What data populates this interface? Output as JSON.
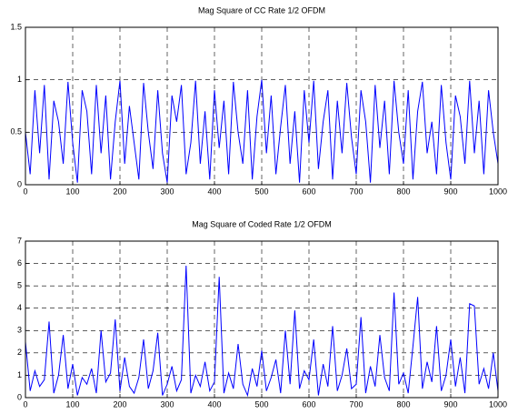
{
  "chart_data": [
    {
      "type": "line",
      "title": "Mag Square of CC Rate 1/2 OFDM",
      "x": [
        0,
        10,
        20,
        30,
        40,
        50,
        60,
        70,
        80,
        90,
        100,
        110,
        120,
        130,
        140,
        150,
        160,
        170,
        180,
        190,
        200,
        210,
        220,
        230,
        240,
        250,
        260,
        270,
        280,
        290,
        300,
        310,
        320,
        330,
        340,
        350,
        360,
        370,
        380,
        390,
        400,
        410,
        420,
        430,
        440,
        450,
        460,
        470,
        480,
        490,
        500,
        510,
        520,
        530,
        540,
        550,
        560,
        570,
        580,
        590,
        600,
        610,
        620,
        630,
        640,
        650,
        660,
        670,
        680,
        690,
        700,
        710,
        720,
        730,
        740,
        750,
        760,
        770,
        780,
        790,
        800,
        810,
        820,
        830,
        840,
        850,
        860,
        870,
        880,
        890,
        900,
        910,
        920,
        930,
        940,
        950,
        960,
        970,
        980,
        990,
        1000
      ],
      "series": [
        {
          "color": "#0000ff",
          "values": [
            0.5,
            0.1,
            0.9,
            0.3,
            0.95,
            0.05,
            0.8,
            0.6,
            0.2,
            0.98,
            0.4,
            0.02,
            0.9,
            0.7,
            0.1,
            0.95,
            0.3,
            0.85,
            0.05,
            0.6,
            0.99,
            0.2,
            0.75,
            0.4,
            0.05,
            0.97,
            0.5,
            0.15,
            0.9,
            0.3,
            0.02,
            0.85,
            0.6,
            0.95,
            0.1,
            0.4,
            0.99,
            0.2,
            0.7,
            0.05,
            0.9,
            0.35,
            0.8,
            0.1,
            0.98,
            0.5,
            0.2,
            0.9,
            0.05,
            0.65,
            1,
            0.3,
            0.85,
            0.1,
            0.55,
            0.95,
            0.2,
            0.7,
            0.02,
            0.9,
            0.4,
            0.99,
            0.15,
            0.6,
            0.9,
            0.05,
            0.8,
            0.3,
            0.97,
            0.45,
            0.1,
            0.9,
            0.6,
            0.02,
            0.95,
            0.35,
            0.8,
            0.1,
            0.99,
            0.5,
            0.2,
            0.9,
            0.05,
            0.7,
            0.98,
            0.3,
            0.6,
            0.1,
            0.95,
            0.4,
            0.05,
            0.85,
            0.65,
            0.2,
            0.99,
            0.3,
            0.8,
            0.1,
            0.9,
            0.5,
            0.2
          ]
        }
      ],
      "xlim": [
        0,
        1000
      ],
      "xticks": [
        0,
        100,
        200,
        300,
        400,
        500,
        600,
        700,
        800,
        900,
        1000
      ],
      "ylim": [
        0,
        1.5
      ],
      "yticks": [
        0,
        0.5,
        1,
        1.5
      ],
      "grid": true
    },
    {
      "type": "line",
      "title": "Mag Square of Coded Rate 1/2 OFDM",
      "x": [
        0,
        10,
        20,
        30,
        40,
        50,
        60,
        70,
        80,
        90,
        100,
        110,
        120,
        130,
        140,
        150,
        160,
        170,
        180,
        190,
        200,
        210,
        220,
        230,
        240,
        250,
        260,
        270,
        280,
        290,
        300,
        310,
        320,
        330,
        340,
        350,
        360,
        370,
        380,
        390,
        400,
        410,
        420,
        430,
        440,
        450,
        460,
        470,
        480,
        490,
        500,
        510,
        520,
        530,
        540,
        550,
        560,
        570,
        580,
        590,
        600,
        610,
        620,
        630,
        640,
        650,
        660,
        670,
        680,
        690,
        700,
        710,
        720,
        730,
        740,
        750,
        760,
        770,
        780,
        790,
        800,
        810,
        820,
        830,
        840,
        850,
        860,
        870,
        880,
        890,
        900,
        910,
        920,
        930,
        940,
        950,
        960,
        970,
        980,
        990,
        1000
      ],
      "series": [
        {
          "color": "#0000ff",
          "values": [
            2.5,
            0.3,
            1.2,
            0.5,
            0.8,
            3.4,
            0.2,
            1.0,
            2.8,
            0.4,
            1.5,
            0.1,
            0.9,
            0.6,
            1.3,
            0.2,
            3.0,
            0.7,
            1.1,
            3.5,
            0.3,
            1.8,
            0.5,
            0.2,
            0.9,
            2.6,
            0.4,
            1.2,
            2.9,
            0.1,
            0.6,
            1.4,
            0.3,
            0.8,
            5.9,
            0.2,
            1.0,
            0.5,
            1.6,
            0.3,
            0.7,
            5.4,
            0.2,
            1.1,
            0.4,
            2.4,
            0.6,
            0.1,
            1.3,
            0.5,
            2.1,
            0.3,
            0.9,
            1.7,
            0.2,
            3.0,
            0.6,
            3.9,
            0.4,
            1.2,
            0.8,
            2.6,
            0.1,
            1.5,
            0.5,
            3.2,
            0.3,
            1.0,
            2.2,
            0.4,
            0.6,
            3.6,
            0.2,
            1.4,
            0.5,
            2.8,
            0.9,
            0.3,
            4.7,
            0.6,
            1.1,
            0.2,
            2.3,
            4.5,
            0.4,
            1.6,
            0.7,
            3.2,
            0.3,
            1.0,
            2.6,
            0.5,
            1.8,
            0.2,
            4.2,
            4.1,
            0.6,
            1.3,
            0.4,
            2.0,
            0.3
          ]
        }
      ],
      "xlim": [
        0,
        1000
      ],
      "xticks": [
        0,
        100,
        200,
        300,
        400,
        500,
        600,
        700,
        800,
        900,
        1000
      ],
      "ylim": [
        0,
        7
      ],
      "yticks": [
        0,
        1,
        2,
        3,
        4,
        5,
        6,
        7
      ],
      "grid": true
    }
  ]
}
